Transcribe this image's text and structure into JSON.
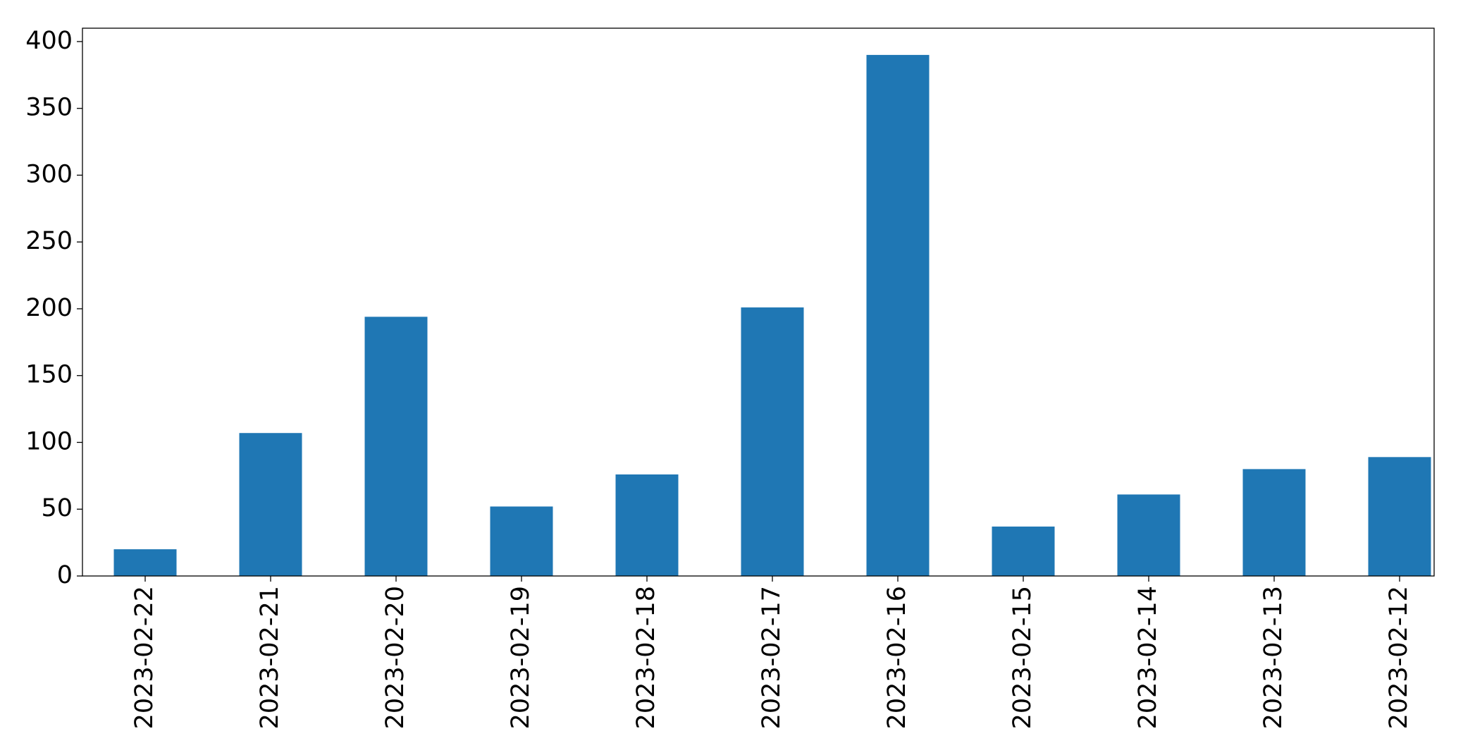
{
  "chart_data": {
    "type": "bar",
    "categories": [
      "2023-02-22",
      "2023-02-21",
      "2023-02-20",
      "2023-02-19",
      "2023-02-18",
      "2023-02-17",
      "2023-02-16",
      "2023-02-15",
      "2023-02-14",
      "2023-02-13",
      "2023-02-12"
    ],
    "values": [
      20,
      107,
      194,
      52,
      76,
      201,
      390,
      37,
      61,
      80,
      89
    ],
    "color": "#1f77b4",
    "ylim": [
      0,
      410
    ],
    "yticks": [
      0,
      50,
      100,
      150,
      200,
      250,
      300,
      350,
      400
    ],
    "grid": false
  }
}
